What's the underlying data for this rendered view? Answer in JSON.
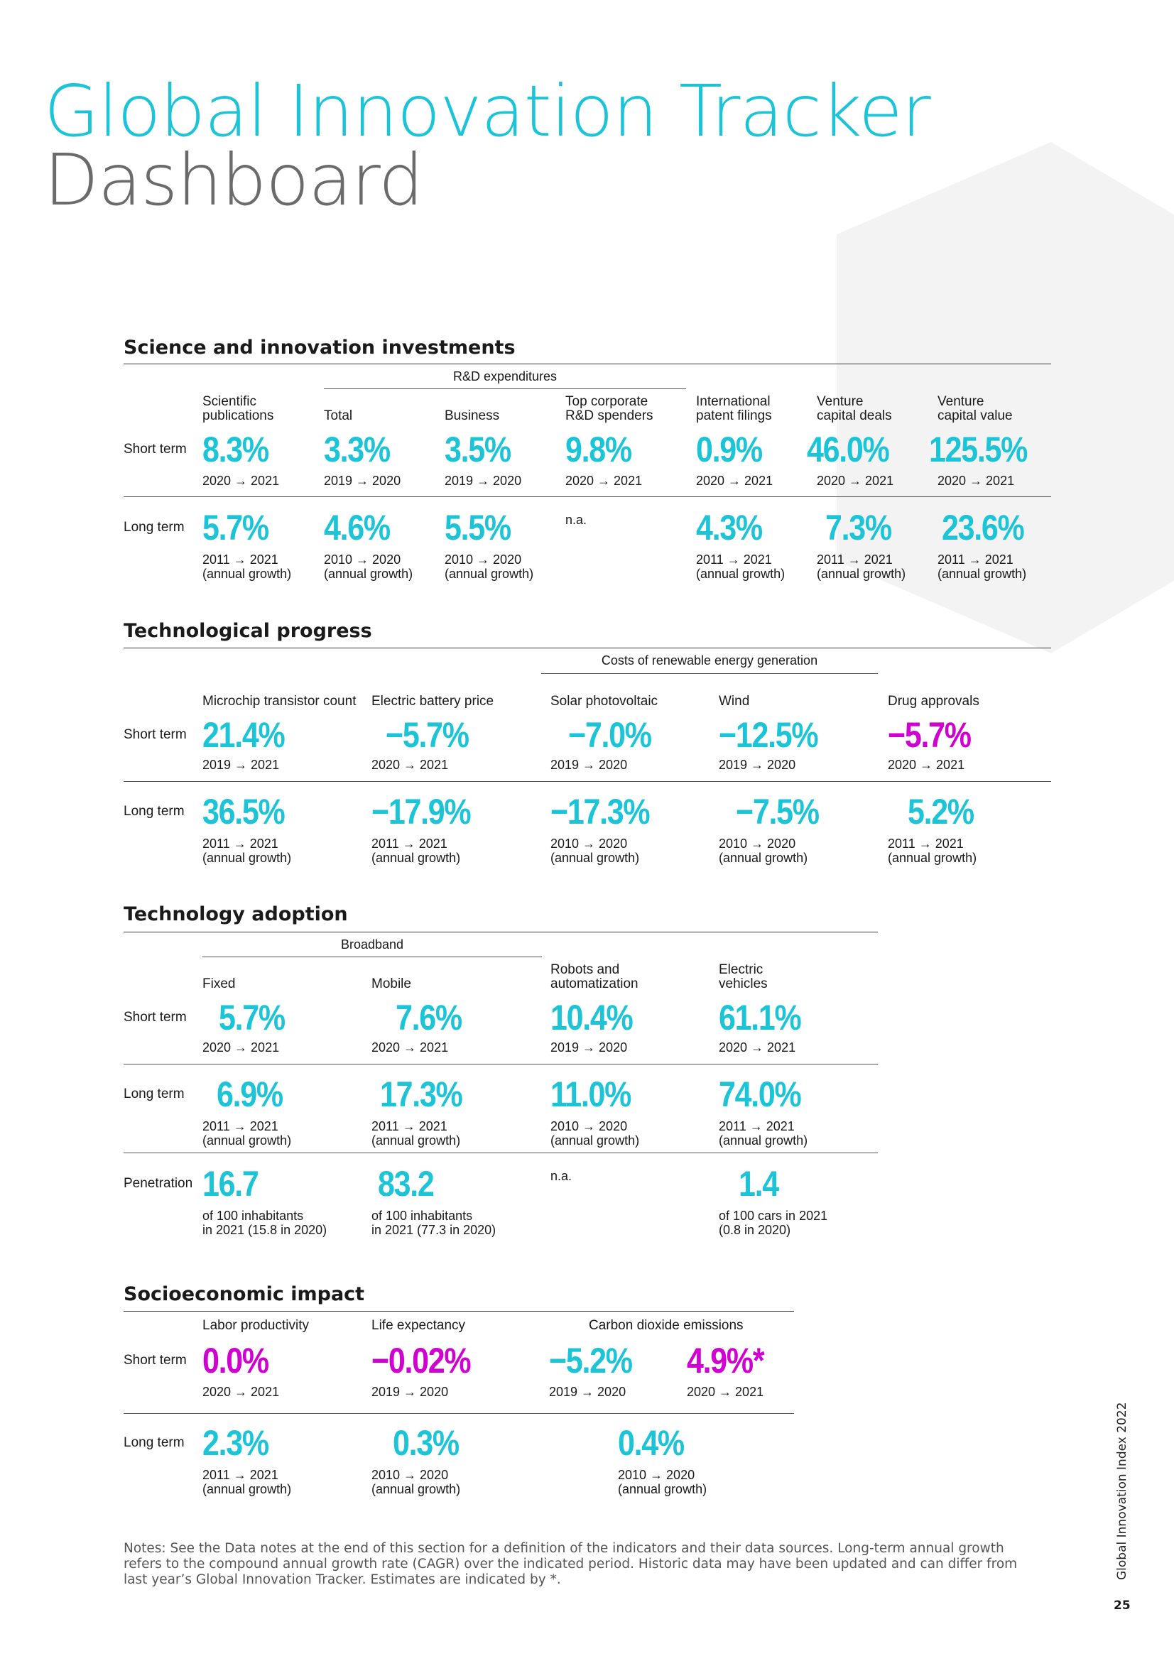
{
  "title": {
    "line1": "Global Innovation Tracker",
    "line2": "Dashboard"
  },
  "sections": {
    "s1": {
      "title": "Science and innovation investments",
      "group": "R&D expenditures",
      "headers": [
        "Scientific\npublications",
        "Total",
        "Business",
        "Top corporate\nR&D spenders",
        "International\npatent filings",
        "Venture\ncapital deals",
        "Venture\ncapital value"
      ],
      "short_label": "Short term",
      "short_vals": [
        "8.3%",
        "3.3%",
        "3.5%",
        "9.8%",
        "0.9%",
        "46.0%",
        "125.5%"
      ],
      "short_periods": [
        "2020 → 2021",
        "2019 → 2020",
        "2019 → 2020",
        "2020 → 2021",
        "2020 → 2021",
        "2020 → 2021",
        "2020 → 2021"
      ],
      "long_label": "Long term",
      "long_vals": [
        "5.7%",
        "4.6%",
        "5.5%",
        "4.3%",
        "7.3%",
        "23.6%"
      ],
      "long_na": "n.a.",
      "long_periods": [
        "2011 → 2021\n(annual growth)",
        "2010 → 2020\n(annual growth)",
        "2010 → 2020\n(annual growth)",
        "2011 → 2021\n(annual growth)",
        "2011 → 2021\n(annual growth)",
        "2011 → 2021\n(annual growth)"
      ]
    },
    "s2": {
      "title": "Technological progress",
      "group": "Costs of renewable energy generation",
      "headers": [
        "Microchip transistor count",
        "Electric battery price",
        "Solar photovoltaic",
        "Wind",
        "Drug approvals"
      ],
      "short_label": "Short term",
      "short_vals": [
        "21.4%",
        "−5.7%",
        "−7.0%",
        "−12.5%",
        "−5.7%"
      ],
      "short_periods": [
        "2019 → 2021",
        "2020 → 2021",
        "2019 → 2020",
        "2019 → 2020",
        "2020 → 2021"
      ],
      "long_label": "Long term",
      "long_vals": [
        "36.5%",
        "−17.9%",
        "−17.3%",
        "−7.5%",
        "5.2%"
      ],
      "long_periods": [
        "2011 → 2021\n(annual growth)",
        "2011 → 2021\n(annual growth)",
        "2010 → 2020\n(annual growth)",
        "2010 → 2020\n(annual growth)",
        "2011 → 2021\n(annual growth)"
      ]
    },
    "s3": {
      "title": "Technology adoption",
      "group": "Broadband",
      "headers": [
        "Fixed",
        "Mobile",
        "Robots and\nautomatization",
        "Electric\nvehicles"
      ],
      "short_label": "Short term",
      "short_vals": [
        "5.7%",
        "7.6%",
        "10.4%",
        "61.1%"
      ],
      "short_periods": [
        "2020 → 2021",
        "2020 → 2021",
        "2019 → 2020",
        "2020 → 2021"
      ],
      "long_label": "Long term",
      "long_vals": [
        "6.9%",
        "17.3%",
        "11.0%",
        "74.0%"
      ],
      "long_periods": [
        "2011 → 2021\n(annual growth)",
        "2011 → 2021\n(annual growth)",
        "2010 → 2020\n(annual growth)",
        "2011 → 2021\n(annual growth)"
      ],
      "pen_label": "Penetration",
      "pen_vals": [
        "16.7",
        "83.2",
        "1.4"
      ],
      "pen_na": "n.a.",
      "pen_periods": [
        "of 100 inhabitants\nin 2021 (15.8 in 2020)",
        "of 100 inhabitants\nin 2021 (77.3 in 2020)",
        "of 100 cars in 2021\n(0.8 in 2020)"
      ]
    },
    "s4": {
      "title": "Socioeconomic impact",
      "headers": [
        "Labor productivity",
        "Life expectancy",
        "Carbon dioxide emissions"
      ],
      "short_label": "Short term",
      "short_vals": [
        "0.0%",
        "−0.02%",
        "−5.2%",
        "4.9%*"
      ],
      "short_periods": [
        "2020 → 2021",
        "2019 → 2020",
        "2019 → 2020",
        "2020 → 2021"
      ],
      "long_label": "Long term",
      "long_vals": [
        "2.3%",
        "0.3%",
        "0.4%"
      ],
      "long_periods": [
        "2011 → 2021\n(annual growth)",
        "2010 → 2020\n(annual growth)",
        "2010 → 2020\n(annual growth)"
      ]
    }
  },
  "notes": "Notes: See the Data notes at the end of this section for a definition of the indicators and their data sources. Long-term annual growth refers to the compound annual growth rate (CAGR) over the indicated period. Historic data may have been updated and can differ from last year’s Global Innovation Tracker. Estimates are indicated by *.",
  "side_text": "Global Innovation Index 2022",
  "page_number": "25",
  "colors": {
    "accent": "#1bc4d7",
    "highlight": "#d000d0",
    "title_gray": "#6b6b6b"
  }
}
